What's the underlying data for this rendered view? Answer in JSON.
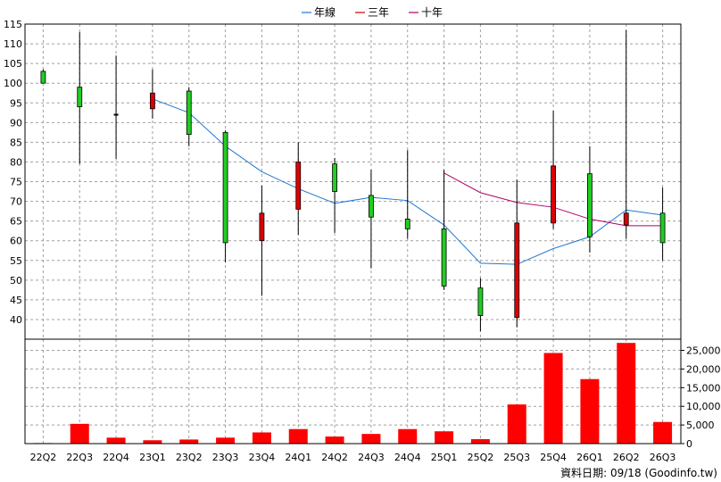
{
  "chart_data": {
    "type": "candlestick",
    "legend": [
      {
        "name": "年線",
        "color": "#1f77d0"
      },
      {
        "name": "三年",
        "color": "#cc0000"
      },
      {
        "name": "十年",
        "color": "#b0006a"
      }
    ],
    "categories": [
      "22Q2",
      "22Q3",
      "22Q4",
      "23Q1",
      "23Q2",
      "23Q3",
      "23Q4",
      "24Q1",
      "24Q2",
      "24Q3",
      "24Q4",
      "25Q1",
      "25Q2",
      "25Q3",
      "25Q4",
      "26Q1",
      "26Q2",
      "26Q3"
    ],
    "price_axis": {
      "min": 35,
      "max": 115,
      "ticks": [
        40,
        45,
        50,
        55,
        60,
        65,
        70,
        75,
        80,
        85,
        90,
        95,
        100,
        105,
        110,
        115
      ]
    },
    "volume_axis": {
      "min": 0,
      "max": 25000,
      "ticks": [
        0,
        5000,
        10000,
        15000,
        20000,
        25000
      ],
      "tick_labels": [
        "0",
        "5,000",
        "10,000",
        "15,000",
        "20,000",
        "25,000"
      ]
    },
    "candles": [
      {
        "open": 100.0,
        "close": 103.0,
        "high": 103.5,
        "low": 100.0,
        "color": "green"
      },
      {
        "open": 94.0,
        "close": 99.0,
        "high": 113.0,
        "low": 79.5,
        "color": "green"
      },
      {
        "open": 92.0,
        "close": 92.0,
        "high": 107.0,
        "low": 80.8,
        "color": "none"
      },
      {
        "open": 97.5,
        "close": 93.5,
        "high": 103.5,
        "low": 91.0,
        "color": "red"
      },
      {
        "open": 87.0,
        "close": 98.0,
        "high": 99.0,
        "low": 84.0,
        "color": "green"
      },
      {
        "open": 59.5,
        "close": 87.5,
        "high": 88.0,
        "low": 54.5,
        "color": "green"
      },
      {
        "open": 67.0,
        "close": 60.0,
        "high": 74.0,
        "low": 46.0,
        "color": "red"
      },
      {
        "open": 80.0,
        "close": 68.0,
        "high": 85.0,
        "low": 61.5,
        "color": "red"
      },
      {
        "open": 72.5,
        "close": 79.5,
        "high": 81.0,
        "low": 62.0,
        "color": "green"
      },
      {
        "open": 66.0,
        "close": 71.5,
        "high": 78.0,
        "low": 53.0,
        "color": "green"
      },
      {
        "open": 63.0,
        "close": 65.5,
        "high": 83.0,
        "low": 60.5,
        "color": "green"
      },
      {
        "open": 48.5,
        "close": 63.0,
        "high": 78.0,
        "low": 47.5,
        "color": "green"
      },
      {
        "open": 41.0,
        "close": 48.0,
        "high": 50.5,
        "low": 37.0,
        "color": "green"
      },
      {
        "open": 64.5,
        "close": 40.5,
        "high": 75.5,
        "low": 38.0,
        "color": "red"
      },
      {
        "open": 79.0,
        "close": 64.5,
        "high": 93.0,
        "low": 63.0,
        "color": "red"
      },
      {
        "open": 61.0,
        "close": 77.0,
        "high": 84.0,
        "low": 57.0,
        "color": "green"
      },
      {
        "open": 67.0,
        "close": 64.0,
        "high": 113.5,
        "low": 60.5,
        "color": "red"
      },
      {
        "open": 59.5,
        "close": 67.0,
        "high": 73.5,
        "low": 55.0,
        "color": "green"
      }
    ],
    "series": [
      {
        "name": "年線",
        "values": [
          null,
          null,
          null,
          96.0,
          92.5,
          84.0,
          77.5,
          73.2,
          69.5,
          71.0,
          70.2,
          64.0,
          54.3,
          54.0,
          58.0,
          61.0,
          67.8,
          66.5
        ]
      },
      {
        "name": "十年",
        "values": [
          null,
          null,
          null,
          null,
          null,
          null,
          null,
          null,
          null,
          null,
          null,
          77.2,
          72.2,
          69.7,
          68.5,
          65.5,
          63.8,
          63.8
        ]
      }
    ],
    "volumes": [
      150,
      5300,
      1600,
      900,
      1100,
      1600,
      3000,
      3900,
      1900,
      2600,
      3900,
      3300,
      1200,
      10500,
      24300,
      17300,
      27000,
      5800
    ],
    "grid": true,
    "legend_position": "top-center"
  },
  "footer": {
    "text": "資料日期: 09/18 (Goodinfo.tw)"
  }
}
